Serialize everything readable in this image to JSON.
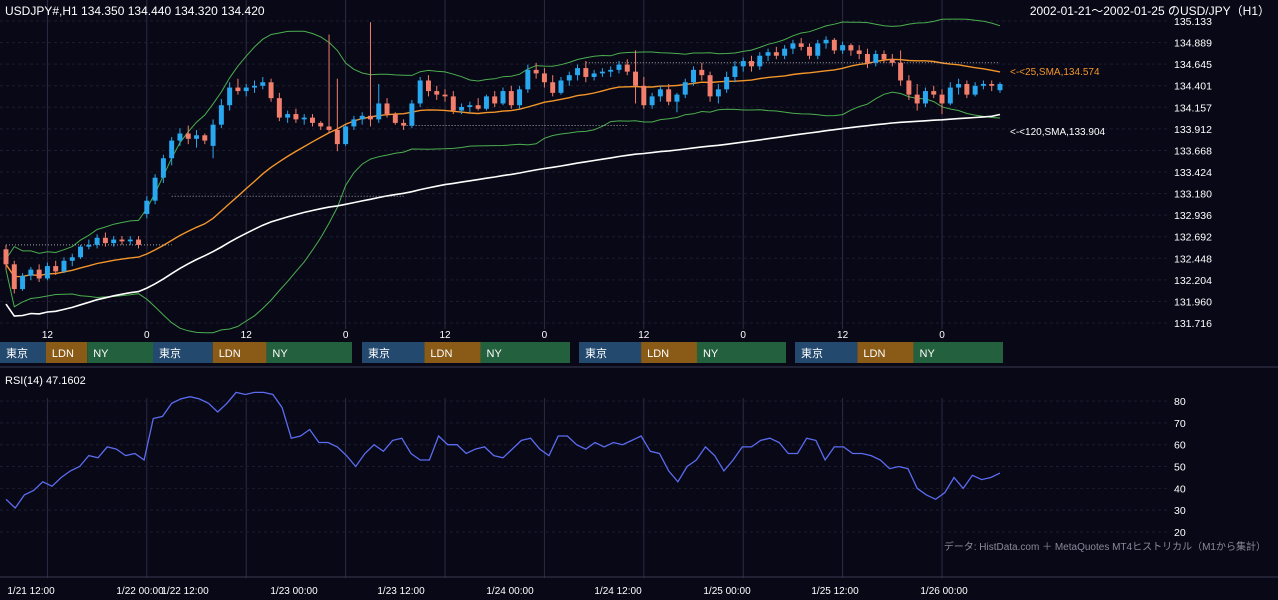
{
  "header": {
    "symbol_info": "USDJPY#,H1 134.350 134.440 134.320 134.420",
    "range_title": "2002-01-21～2002-01-25 のUSD/JPY（H1）"
  },
  "indicators": {
    "sma25_label": "<-<25,SMA,134.574",
    "sma120_label": "<-<120,SMA,133.904",
    "rsi_label": "RSI(14) 47.1602"
  },
  "colors": {
    "background": "#080816",
    "bull": "#29a8f0",
    "bear": "#f27e6c",
    "sma25": "#f2952b",
    "sma120": "#ffffff",
    "bollinger": "#4caf50",
    "rsi": "#5b6cf0",
    "tokyo": "#23496f",
    "london": "#8a5a17",
    "newyork": "#23603d"
  },
  "sessions": {
    "tokyo": "東京",
    "london": "LDN",
    "newyork": "NY"
  },
  "session_blocks": [
    [
      "東京",
      "LDN",
      "NY"
    ],
    [
      "東京",
      "LDN",
      "NY"
    ],
    [
      "東京",
      "LDN",
      "NY"
    ],
    [
      "東京",
      "LDN",
      "NY"
    ],
    [
      "東京",
      "LDN",
      "NY"
    ]
  ],
  "hour_ticks": [
    "12",
    "0",
    "12",
    "0",
    "12",
    "0",
    "12",
    "0",
    "12",
    "0"
  ],
  "date_ticks": [
    "1/21 12:00",
    "1/22 00:00",
    "1/22 12:00",
    "1/23 00:00",
    "1/23 12:00",
    "1/24 00:00",
    "1/24 12:00",
    "1/25 00:00",
    "1/25 12:00",
    "1/26 00:00"
  ],
  "footer_note": "データ: HistData.com ＋ MetaQuotes MT4ヒストリカル（M1から集計）",
  "chart_data": [
    {
      "type": "candlestick",
      "ylim": [
        131.716,
        135.133
      ],
      "y_ticks": [
        "135.133",
        "134.889",
        "134.645",
        "134.401",
        "134.157",
        "133.912",
        "133.668",
        "133.424",
        "133.180",
        "132.936",
        "132.692",
        "132.448",
        "132.204",
        "131.960",
        "131.716"
      ],
      "ohlc": [
        [
          132.55,
          132.6,
          132.32,
          132.38
        ],
        [
          132.38,
          132.42,
          132.05,
          132.1
        ],
        [
          132.1,
          132.28,
          132.08,
          132.25
        ],
        [
          132.25,
          132.35,
          132.2,
          132.32
        ],
        [
          132.32,
          132.38,
          132.18,
          132.22
        ],
        [
          132.22,
          132.4,
          132.2,
          132.36
        ],
        [
          132.36,
          132.42,
          132.26,
          132.3
        ],
        [
          132.3,
          132.46,
          132.28,
          132.42
        ],
        [
          132.42,
          132.5,
          132.36,
          132.46
        ],
        [
          132.46,
          132.6,
          132.44,
          132.58
        ],
        [
          132.58,
          132.66,
          132.55,
          132.6
        ],
        [
          132.6,
          132.72,
          132.56,
          132.68
        ],
        [
          132.68,
          132.74,
          132.58,
          132.62
        ],
        [
          132.62,
          132.7,
          132.58,
          132.66
        ],
        [
          132.66,
          132.7,
          132.6,
          132.64
        ],
        [
          132.64,
          132.7,
          132.6,
          132.66
        ],
        [
          132.66,
          132.7,
          132.56,
          132.6
        ],
        [
          132.95,
          133.15,
          132.9,
          133.1
        ],
        [
          133.1,
          133.4,
          133.06,
          133.36
        ],
        [
          133.36,
          133.62,
          133.3,
          133.58
        ],
        [
          133.58,
          133.82,
          133.5,
          133.78
        ],
        [
          133.78,
          133.92,
          133.72,
          133.86
        ],
        [
          133.86,
          133.95,
          133.74,
          133.8
        ],
        [
          133.8,
          133.9,
          133.7,
          133.84
        ],
        [
          133.84,
          133.86,
          133.74,
          133.78
        ],
        [
          133.72,
          134.02,
          133.58,
          133.96
        ],
        [
          133.96,
          134.25,
          133.92,
          134.18
        ],
        [
          134.18,
          134.44,
          134.12,
          134.38
        ],
        [
          134.38,
          134.48,
          134.3,
          134.34
        ],
        [
          134.34,
          134.42,
          134.28,
          134.38
        ],
        [
          134.38,
          134.46,
          134.32,
          134.4
        ],
        [
          134.4,
          134.5,
          134.36,
          134.44
        ],
        [
          134.44,
          134.48,
          134.22,
          134.26
        ],
        [
          134.26,
          134.32,
          134.0,
          134.04
        ],
        [
          134.04,
          134.12,
          133.98,
          134.08
        ],
        [
          134.08,
          134.14,
          133.98,
          134.02
        ],
        [
          134.02,
          134.08,
          133.96,
          134.04
        ],
        [
          134.04,
          134.08,
          133.94,
          133.98
        ],
        [
          133.98,
          134.0,
          133.9,
          133.94
        ],
        [
          133.94,
          134.98,
          133.86,
          133.9
        ],
        [
          133.9,
          134.48,
          133.66,
          133.74
        ],
        [
          133.74,
          133.96,
          133.72,
          133.94
        ],
        [
          133.94,
          134.06,
          133.9,
          134.02
        ],
        [
          134.02,
          134.1,
          133.96,
          134.06
        ],
        [
          134.06,
          135.12,
          133.94,
          134.02
        ],
        [
          134.02,
          134.42,
          133.98,
          134.2
        ],
        [
          134.2,
          134.26,
          134.04,
          134.08
        ],
        [
          134.08,
          134.1,
          133.96,
          133.98
        ],
        [
          133.98,
          134.02,
          133.9,
          133.95
        ],
        [
          133.95,
          134.24,
          133.92,
          134.2
        ],
        [
          134.2,
          134.5,
          134.16,
          134.46
        ],
        [
          134.46,
          134.52,
          134.28,
          134.34
        ],
        [
          134.34,
          134.4,
          134.24,
          134.3
        ],
        [
          134.3,
          134.36,
          134.22,
          134.28
        ],
        [
          134.28,
          134.34,
          134.08,
          134.12
        ],
        [
          134.12,
          134.2,
          134.08,
          134.16
        ],
        [
          134.16,
          134.22,
          134.1,
          134.18
        ],
        [
          134.18,
          134.26,
          134.12,
          134.14
        ],
        [
          134.14,
          134.3,
          134.12,
          134.28
        ],
        [
          134.28,
          134.34,
          134.16,
          134.2
        ],
        [
          134.2,
          134.38,
          134.18,
          134.34
        ],
        [
          134.34,
          134.4,
          134.14,
          134.18
        ],
        [
          134.18,
          134.4,
          134.14,
          134.36
        ],
        [
          134.36,
          134.64,
          134.32,
          134.58
        ],
        [
          134.58,
          134.66,
          134.48,
          134.54
        ],
        [
          134.54,
          134.6,
          134.38,
          134.44
        ],
        [
          134.44,
          134.52,
          134.28,
          134.32
        ],
        [
          134.32,
          134.5,
          134.3,
          134.46
        ],
        [
          134.46,
          134.56,
          134.4,
          134.52
        ],
        [
          134.52,
          134.64,
          134.46,
          134.6
        ],
        [
          134.6,
          134.68,
          134.44,
          134.5
        ],
        [
          134.5,
          134.58,
          134.46,
          134.54
        ],
        [
          134.54,
          134.6,
          134.5,
          134.56
        ],
        [
          134.56,
          134.62,
          134.5,
          134.58
        ],
        [
          134.58,
          134.68,
          134.54,
          134.64
        ],
        [
          134.64,
          134.7,
          134.52,
          134.56
        ],
        [
          134.56,
          134.8,
          134.2,
          134.4
        ],
        [
          134.4,
          134.5,
          134.14,
          134.18
        ],
        [
          134.18,
          134.32,
          134.14,
          134.28
        ],
        [
          134.28,
          134.4,
          134.22,
          134.36
        ],
        [
          134.36,
          134.42,
          134.18,
          134.22
        ],
        [
          134.22,
          134.32,
          134.1,
          134.3
        ],
        [
          134.3,
          134.48,
          134.26,
          134.44
        ],
        [
          134.44,
          134.62,
          134.4,
          134.58
        ],
        [
          134.58,
          134.66,
          134.46,
          134.52
        ],
        [
          134.52,
          134.56,
          134.22,
          134.28
        ],
        [
          134.28,
          134.42,
          134.2,
          134.36
        ],
        [
          134.36,
          134.56,
          134.32,
          134.5
        ],
        [
          134.5,
          134.68,
          134.44,
          134.62
        ],
        [
          134.62,
          134.72,
          134.56,
          134.68
        ],
        [
          134.68,
          134.74,
          134.56,
          134.62
        ],
        [
          134.62,
          134.78,
          134.58,
          134.74
        ],
        [
          134.74,
          134.82,
          134.68,
          134.78
        ],
        [
          134.78,
          134.84,
          134.7,
          134.74
        ],
        [
          134.74,
          134.86,
          134.7,
          134.82
        ],
        [
          134.82,
          134.92,
          134.76,
          134.88
        ],
        [
          134.88,
          134.94,
          134.8,
          134.84
        ],
        [
          134.84,
          134.88,
          134.7,
          134.74
        ],
        [
          134.74,
          134.92,
          134.7,
          134.88
        ],
        [
          134.88,
          134.96,
          134.82,
          134.92
        ],
        [
          134.92,
          134.94,
          134.76,
          134.8
        ],
        [
          134.8,
          134.9,
          134.76,
          134.86
        ],
        [
          134.86,
          134.88,
          134.74,
          134.8
        ],
        [
          134.8,
          134.86,
          134.7,
          134.76
        ],
        [
          134.76,
          134.82,
          134.6,
          134.66
        ],
        [
          134.66,
          134.8,
          134.62,
          134.76
        ],
        [
          134.76,
          134.8,
          134.66,
          134.7
        ],
        [
          134.7,
          134.76,
          134.62,
          134.66
        ],
        [
          134.66,
          134.8,
          134.4,
          134.46
        ],
        [
          134.46,
          134.52,
          134.24,
          134.3
        ],
        [
          134.3,
          134.42,
          134.12,
          134.2
        ],
        [
          134.2,
          134.38,
          134.16,
          134.34
        ],
        [
          134.34,
          134.4,
          134.26,
          134.3
        ],
        [
          134.3,
          134.36,
          134.08,
          134.2
        ],
        [
          134.2,
          134.44,
          134.18,
          134.38
        ],
        [
          134.38,
          134.48,
          134.3,
          134.42
        ],
        [
          134.42,
          134.46,
          134.26,
          134.3
        ],
        [
          134.3,
          134.44,
          134.28,
          134.4
        ],
        [
          134.4,
          134.46,
          134.36,
          134.42
        ],
        [
          134.42,
          134.46,
          134.34,
          134.4
        ],
        [
          134.35,
          134.44,
          134.32,
          134.42
        ]
      ]
    },
    {
      "type": "line",
      "name": "RSI(14) 47.1602",
      "ylim": [
        20,
        86
      ],
      "y_ticks": [
        80,
        70,
        60,
        50,
        40,
        30,
        20
      ],
      "values": [
        35,
        31,
        37,
        39,
        43,
        41,
        45,
        48,
        50,
        55,
        54,
        59,
        58,
        55,
        56,
        53,
        72,
        73,
        79,
        81,
        82,
        81,
        79,
        75,
        79,
        84,
        83,
        84,
        84,
        83,
        77,
        63,
        64,
        67,
        61,
        61,
        59,
        55,
        50,
        56,
        60,
        57,
        62,
        63,
        56,
        53,
        53,
        64,
        60,
        60,
        56,
        58,
        59,
        55,
        54,
        58,
        62,
        63,
        58,
        55,
        64,
        64,
        60,
        58,
        61,
        59,
        61,
        60,
        62,
        64,
        57,
        56,
        48,
        43,
        50,
        53,
        59,
        55,
        48,
        53,
        59,
        59,
        62,
        63,
        61,
        56,
        56,
        63,
        62,
        53,
        59,
        59,
        56,
        56,
        55,
        53,
        49,
        50,
        49,
        40,
        37,
        35,
        38,
        45,
        40,
        46,
        44,
        45,
        47
      ]
    }
  ]
}
